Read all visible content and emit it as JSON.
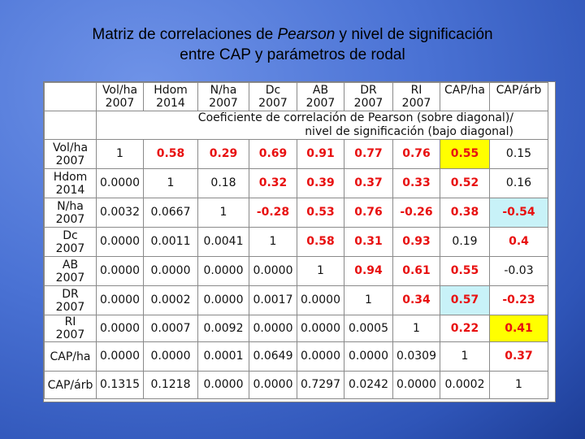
{
  "title": {
    "part1": "Matriz de correlaciones de ",
    "italic": "Pearson",
    "part2": " y nivel de significación",
    "line2": "entre CAP y parámetros de rodal"
  },
  "table": {
    "columns": [
      {
        "line1": "Vol/ha",
        "line2": "2007"
      },
      {
        "line1": "Hdom",
        "line2": "2014"
      },
      {
        "line1": "N/ha",
        "line2": "2007"
      },
      {
        "line1": "Dc",
        "line2": "2007"
      },
      {
        "line1": "AB",
        "line2": "2007"
      },
      {
        "line1": "DR",
        "line2": "2007"
      },
      {
        "line1": "RI",
        "line2": "2007"
      },
      {
        "line1": "CAP/ha",
        "line2": ""
      },
      {
        "line1": "CAP/árb",
        "line2": ""
      }
    ],
    "coef_label_line1": "Coeficiente de correlación de Pearson (sobre diagonal)/",
    "coef_label_line2": "nivel de significación (bajo diagonal)",
    "rows": [
      {
        "head1": "Vol/ha",
        "head2": "2007",
        "cells": [
          {
            "v": "1"
          },
          {
            "v": "0.58",
            "red": true
          },
          {
            "v": "0.29",
            "red": true
          },
          {
            "v": "0.69",
            "red": true
          },
          {
            "v": "0.91",
            "red": true
          },
          {
            "v": "0.77",
            "red": true
          },
          {
            "v": "0.76",
            "red": true
          },
          {
            "v": "0.55",
            "red": true,
            "hl": "yellow"
          },
          {
            "v": "0.15"
          }
        ]
      },
      {
        "head1": "Hdom",
        "head2": "2014",
        "cells": [
          {
            "v": "0.0000"
          },
          {
            "v": "1"
          },
          {
            "v": "0.18"
          },
          {
            "v": "0.32",
            "red": true
          },
          {
            "v": "0.39",
            "red": true
          },
          {
            "v": "0.37",
            "red": true
          },
          {
            "v": "0.33",
            "red": true
          },
          {
            "v": "0.52",
            "red": true
          },
          {
            "v": "0.16"
          }
        ]
      },
      {
        "head1": "N/ha",
        "head2": "2007",
        "cells": [
          {
            "v": "0.0032"
          },
          {
            "v": "0.0667"
          },
          {
            "v": "1"
          },
          {
            "v": "-0.28",
            "red": true
          },
          {
            "v": "0.53",
            "red": true
          },
          {
            "v": "0.76",
            "red": true
          },
          {
            "v": "-0.26",
            "red": true
          },
          {
            "v": "0.38",
            "red": true
          },
          {
            "v": "-0.54",
            "red": true,
            "hl": "cyan"
          }
        ]
      },
      {
        "head1": "Dc",
        "head2": "2007",
        "cells": [
          {
            "v": "0.0000"
          },
          {
            "v": "0.0011"
          },
          {
            "v": "0.0041"
          },
          {
            "v": "1"
          },
          {
            "v": "0.58",
            "red": true
          },
          {
            "v": "0.31",
            "red": true
          },
          {
            "v": "0.93",
            "red": true
          },
          {
            "v": "0.19"
          },
          {
            "v": "0.4",
            "red": true
          }
        ]
      },
      {
        "head1": "AB",
        "head2": "2007",
        "cells": [
          {
            "v": "0.0000"
          },
          {
            "v": "0.0000"
          },
          {
            "v": "0.0000"
          },
          {
            "v": "0.0000"
          },
          {
            "v": "1"
          },
          {
            "v": "0.94",
            "red": true
          },
          {
            "v": "0.61",
            "red": true
          },
          {
            "v": "0.55",
            "red": true
          },
          {
            "v": "-0.03"
          }
        ]
      },
      {
        "head1": "DR",
        "head2": "2007",
        "cells": [
          {
            "v": "0.0000"
          },
          {
            "v": "0.0002"
          },
          {
            "v": "0.0000"
          },
          {
            "v": "0.0017"
          },
          {
            "v": "0.0000"
          },
          {
            "v": "1"
          },
          {
            "v": "0.34",
            "red": true
          },
          {
            "v": "0.57",
            "red": true,
            "hl": "cyan"
          },
          {
            "v": "-0.23",
            "red": true
          }
        ]
      },
      {
        "head1": "RI",
        "head2": "2007",
        "cells": [
          {
            "v": "0.0000"
          },
          {
            "v": "0.0007"
          },
          {
            "v": "0.0092"
          },
          {
            "v": "0.0000"
          },
          {
            "v": "0.0000"
          },
          {
            "v": "0.0005"
          },
          {
            "v": "1"
          },
          {
            "v": "0.22",
            "red": true
          },
          {
            "v": "0.41",
            "red": true,
            "hl": "yellow"
          }
        ]
      },
      {
        "head1": "CAP/ha",
        "head2": "",
        "cells": [
          {
            "v": "0.0000"
          },
          {
            "v": "0.0000"
          },
          {
            "v": "0.0001"
          },
          {
            "v": "0.0649"
          },
          {
            "v": "0.0000"
          },
          {
            "v": "0.0000"
          },
          {
            "v": "0.0309"
          },
          {
            "v": "1"
          },
          {
            "v": "0.37",
            "red": true
          }
        ]
      },
      {
        "head1": "CAP/árb",
        "head2": "",
        "cells": [
          {
            "v": "0.1315"
          },
          {
            "v": "0.1218"
          },
          {
            "v": "0.0000"
          },
          {
            "v": "0.0000"
          },
          {
            "v": "0.7297"
          },
          {
            "v": "0.0242"
          },
          {
            "v": "0.0000"
          },
          {
            "v": "0.0002"
          },
          {
            "v": "1"
          }
        ]
      }
    ]
  },
  "colors": {
    "significant_text": "#e81010",
    "highlight_yellow": "#ffff00",
    "highlight_cyan": "#c8f2f8"
  }
}
